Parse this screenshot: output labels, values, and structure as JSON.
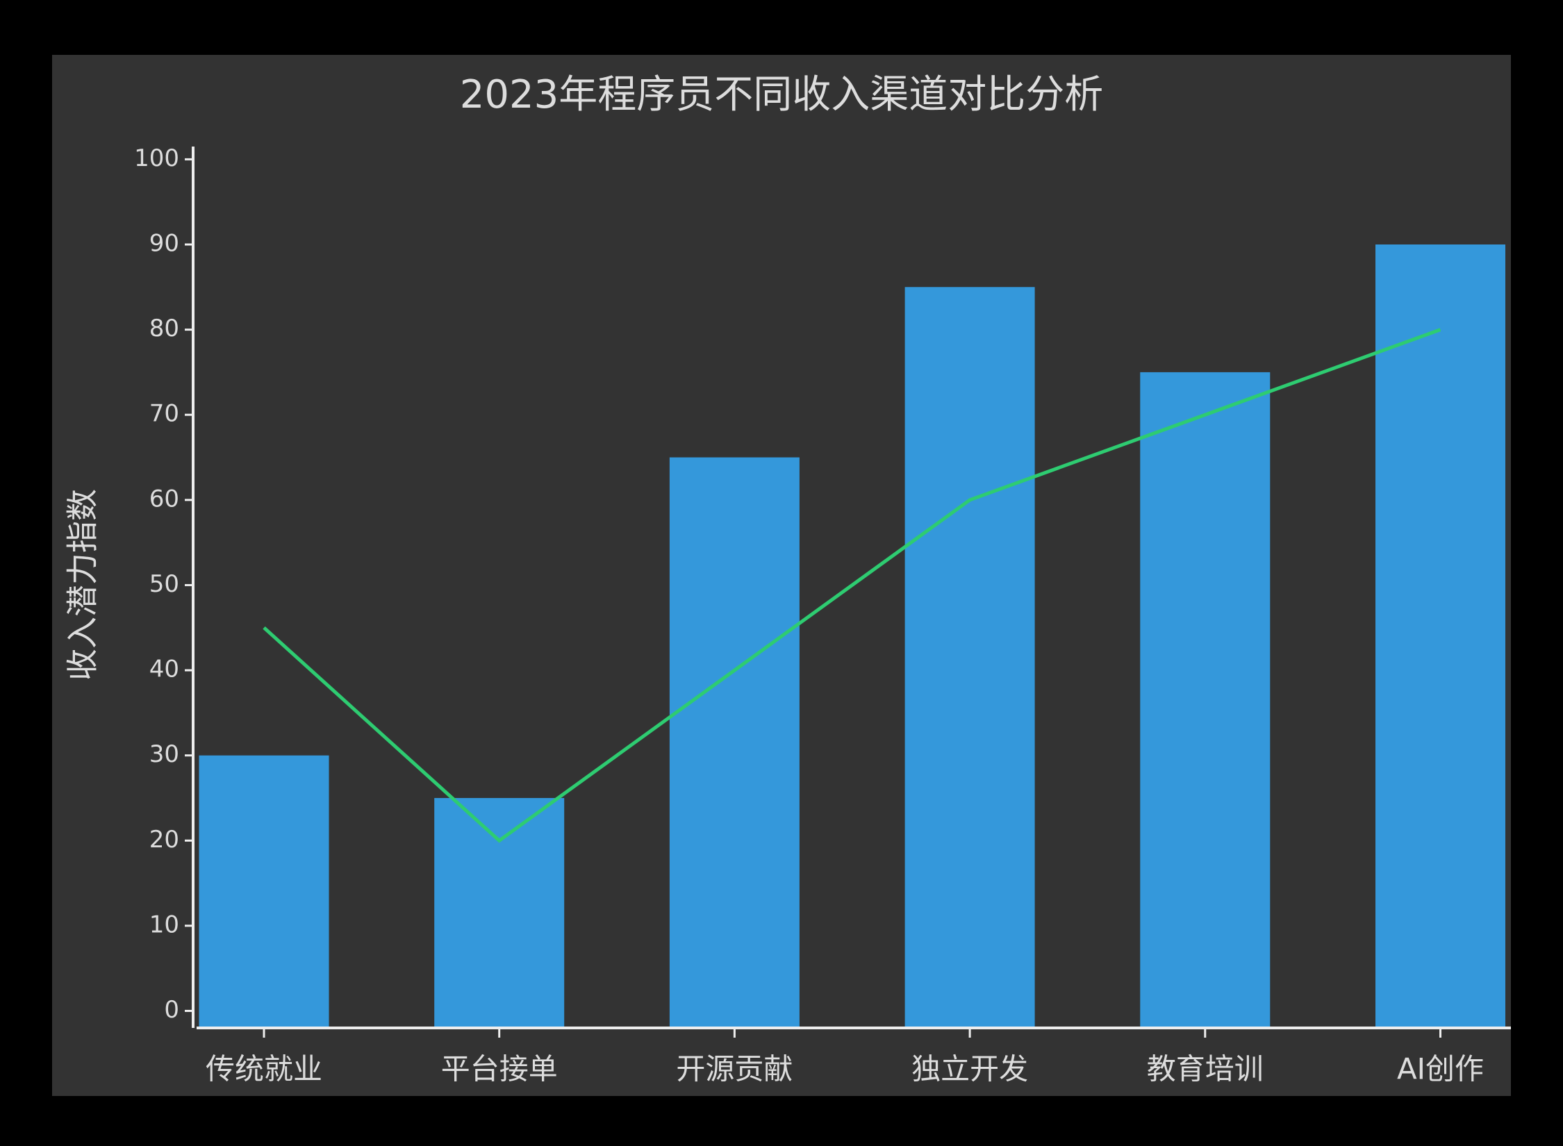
{
  "chart_data": {
    "type": "bar",
    "title": "2023年程序员不同收入渠道对比分析",
    "y_label": "收入潜力指数",
    "categories": [
      "传统就业",
      "平台接单",
      "开源贡献",
      "独立开发",
      "教育培训",
      "AI创作"
    ],
    "series": [
      {
        "type": "bar",
        "color": "#3498db",
        "values": [
          30,
          25,
          65,
          85,
          75,
          90
        ]
      },
      {
        "type": "line",
        "color": "#2ecc71",
        "values": [
          45,
          20,
          40,
          60,
          70,
          80
        ]
      }
    ],
    "ylim": [
      -2,
      101.5
    ],
    "yticks": [
      0,
      10,
      20,
      30,
      40,
      50,
      60,
      70,
      80,
      90,
      100
    ],
    "grid": false
  }
}
